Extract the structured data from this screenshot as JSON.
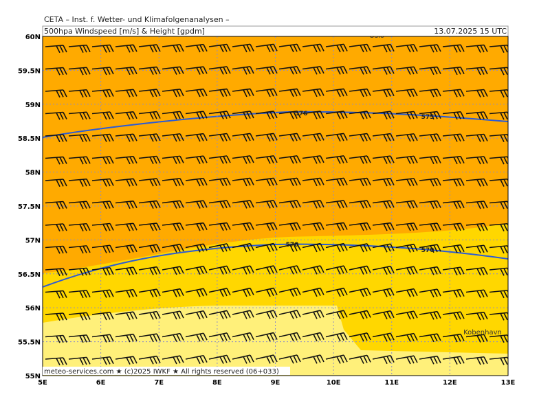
{
  "header": {
    "institute": "CETA – Inst. f. Wetter- und Klimafolgenanalysen –",
    "title": "500hpa Windspeed [m/s] & Height [gpdm]",
    "datetime": "13.07.2025 15 UTC"
  },
  "latitude_labels": [
    "60N",
    "59.5N",
    "59N",
    "58.5N",
    "58N",
    "57.5N",
    "57N",
    "56.5N",
    "56N",
    "55.5N",
    "55N"
  ],
  "longitude_labels": [
    "5E",
    "6E",
    "7E",
    "8E",
    "9E",
    "10E",
    "11E",
    "12E",
    "13E"
  ],
  "contour_labels": [
    "576",
    "575",
    "570",
    "570"
  ],
  "places": [
    "Oslo",
    "Kobenhavn"
  ],
  "footer": "meteo-services.com ★ (c)2025 IWKF ★ All rights reserved (06+033)"
}
